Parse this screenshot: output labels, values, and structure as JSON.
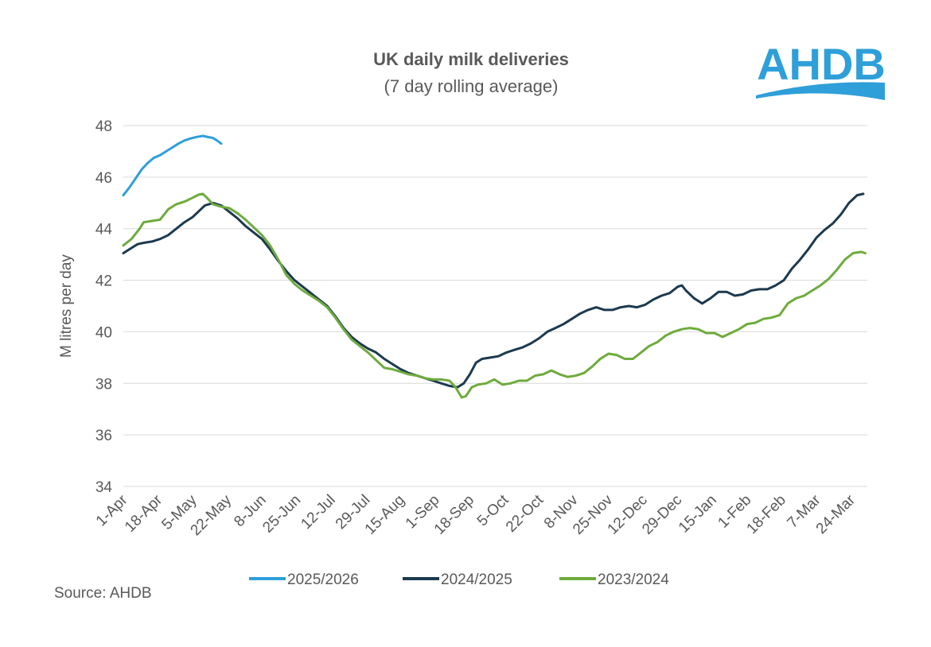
{
  "chart_data": {
    "type": "line",
    "title": "UK daily milk deliveries",
    "subtitle": "(7 day rolling average)",
    "xlabel": "",
    "ylabel": "M litres per day",
    "ylim": [
      34,
      48
    ],
    "yticks": [
      34,
      36,
      38,
      40,
      42,
      44,
      46,
      48
    ],
    "xlim_day": [
      0,
      365
    ],
    "xticks": [
      {
        "label": "1-Apr",
        "day": 0
      },
      {
        "label": "18-Apr",
        "day": 17
      },
      {
        "label": "5-May",
        "day": 34
      },
      {
        "label": "22-May",
        "day": 51
      },
      {
        "label": "8-Jun",
        "day": 68
      },
      {
        "label": "25-Jun",
        "day": 85
      },
      {
        "label": "12-Jul",
        "day": 102
      },
      {
        "label": "29-Jul",
        "day": 119
      },
      {
        "label": "15-Aug",
        "day": 136
      },
      {
        "label": "1-Sep",
        "day": 153
      },
      {
        "label": "18-Sep",
        "day": 170
      },
      {
        "label": "5-Oct",
        "day": 187
      },
      {
        "label": "22-Oct",
        "day": 204
      },
      {
        "label": "8-Nov",
        "day": 221
      },
      {
        "label": "25-Nov",
        "day": 238
      },
      {
        "label": "12-Dec",
        "day": 255
      },
      {
        "label": "29-Dec",
        "day": 272
      },
      {
        "label": "15-Jan",
        "day": 289
      },
      {
        "label": "1-Feb",
        "day": 306
      },
      {
        "label": "18-Feb",
        "day": 323
      },
      {
        "label": "7-Mar",
        "day": 340
      },
      {
        "label": "24-Mar",
        "day": 357
      }
    ],
    "grid": true,
    "legend_position": "bottom",
    "series": [
      {
        "name": "2025/2026",
        "color": "#2e9fd9",
        "points": [
          [
            0,
            45.3
          ],
          [
            3,
            45.6
          ],
          [
            6,
            45.95
          ],
          [
            9,
            46.3
          ],
          [
            12,
            46.55
          ],
          [
            15,
            46.75
          ],
          [
            18,
            46.85
          ],
          [
            21,
            47.0
          ],
          [
            24,
            47.15
          ],
          [
            27,
            47.3
          ],
          [
            30,
            47.42
          ],
          [
            33,
            47.5
          ],
          [
            36,
            47.56
          ],
          [
            39,
            47.6
          ],
          [
            42,
            47.55
          ],
          [
            44,
            47.52
          ],
          [
            46,
            47.42
          ],
          [
            48,
            47.3
          ]
        ]
      },
      {
        "name": "2024/2025",
        "color": "#1c3a4f",
        "points": [
          [
            0,
            43.05
          ],
          [
            4,
            43.25
          ],
          [
            7,
            43.4
          ],
          [
            10,
            43.45
          ],
          [
            14,
            43.5
          ],
          [
            18,
            43.6
          ],
          [
            22,
            43.75
          ],
          [
            26,
            44.0
          ],
          [
            30,
            44.25
          ],
          [
            34,
            44.45
          ],
          [
            38,
            44.75
          ],
          [
            40,
            44.9
          ],
          [
            42,
            44.95
          ],
          [
            44,
            45.0
          ],
          [
            46,
            44.95
          ],
          [
            48,
            44.9
          ],
          [
            52,
            44.65
          ],
          [
            56,
            44.4
          ],
          [
            60,
            44.1
          ],
          [
            64,
            43.85
          ],
          [
            68,
            43.6
          ],
          [
            72,
            43.2
          ],
          [
            76,
            42.75
          ],
          [
            80,
            42.35
          ],
          [
            84,
            42.0
          ],
          [
            88,
            41.75
          ],
          [
            92,
            41.5
          ],
          [
            96,
            41.25
          ],
          [
            100,
            41.0
          ],
          [
            104,
            40.6
          ],
          [
            108,
            40.15
          ],
          [
            112,
            39.8
          ],
          [
            116,
            39.55
          ],
          [
            120,
            39.35
          ],
          [
            124,
            39.2
          ],
          [
            128,
            38.95
          ],
          [
            132,
            38.75
          ],
          [
            136,
            38.55
          ],
          [
            140,
            38.4
          ],
          [
            144,
            38.3
          ],
          [
            148,
            38.2
          ],
          [
            152,
            38.1
          ],
          [
            156,
            38.0
          ],
          [
            160,
            37.9
          ],
          [
            164,
            37.85
          ],
          [
            167,
            38.0
          ],
          [
            170,
            38.35
          ],
          [
            173,
            38.8
          ],
          [
            176,
            38.95
          ],
          [
            180,
            39.0
          ],
          [
            184,
            39.05
          ],
          [
            188,
            39.2
          ],
          [
            192,
            39.3
          ],
          [
            196,
            39.4
          ],
          [
            200,
            39.55
          ],
          [
            204,
            39.75
          ],
          [
            208,
            40.0
          ],
          [
            212,
            40.15
          ],
          [
            216,
            40.3
          ],
          [
            220,
            40.5
          ],
          [
            224,
            40.7
          ],
          [
            228,
            40.85
          ],
          [
            232,
            40.95
          ],
          [
            236,
            40.85
          ],
          [
            240,
            40.85
          ],
          [
            244,
            40.95
          ],
          [
            248,
            41.0
          ],
          [
            252,
            40.95
          ],
          [
            256,
            41.05
          ],
          [
            260,
            41.25
          ],
          [
            264,
            41.4
          ],
          [
            268,
            41.5
          ],
          [
            272,
            41.75
          ],
          [
            274,
            41.8
          ],
          [
            276,
            41.6
          ],
          [
            280,
            41.3
          ],
          [
            284,
            41.1
          ],
          [
            288,
            41.3
          ],
          [
            292,
            41.55
          ],
          [
            296,
            41.55
          ],
          [
            300,
            41.4
          ],
          [
            304,
            41.45
          ],
          [
            308,
            41.6
          ],
          [
            312,
            41.65
          ],
          [
            316,
            41.65
          ],
          [
            320,
            41.8
          ],
          [
            324,
            42.0
          ],
          [
            328,
            42.45
          ],
          [
            332,
            42.8
          ],
          [
            336,
            43.2
          ],
          [
            340,
            43.65
          ],
          [
            344,
            43.95
          ],
          [
            348,
            44.2
          ],
          [
            352,
            44.55
          ],
          [
            356,
            45.0
          ],
          [
            360,
            45.3
          ],
          [
            363,
            45.35
          ]
        ]
      },
      {
        "name": "2023/2024",
        "color": "#6eab3d",
        "points": [
          [
            0,
            43.35
          ],
          [
            4,
            43.6
          ],
          [
            8,
            44.0
          ],
          [
            10,
            44.25
          ],
          [
            14,
            44.3
          ],
          [
            18,
            44.35
          ],
          [
            22,
            44.75
          ],
          [
            26,
            44.95
          ],
          [
            30,
            45.05
          ],
          [
            34,
            45.2
          ],
          [
            37,
            45.32
          ],
          [
            39,
            45.35
          ],
          [
            41,
            45.2
          ],
          [
            44,
            44.95
          ],
          [
            48,
            44.85
          ],
          [
            52,
            44.8
          ],
          [
            56,
            44.6
          ],
          [
            60,
            44.35
          ],
          [
            64,
            44.05
          ],
          [
            68,
            43.75
          ],
          [
            72,
            43.35
          ],
          [
            76,
            42.8
          ],
          [
            80,
            42.2
          ],
          [
            84,
            41.85
          ],
          [
            88,
            41.6
          ],
          [
            92,
            41.4
          ],
          [
            96,
            41.2
          ],
          [
            100,
            40.95
          ],
          [
            104,
            40.55
          ],
          [
            108,
            40.1
          ],
          [
            112,
            39.7
          ],
          [
            116,
            39.45
          ],
          [
            120,
            39.2
          ],
          [
            124,
            38.9
          ],
          [
            128,
            38.6
          ],
          [
            132,
            38.55
          ],
          [
            136,
            38.45
          ],
          [
            140,
            38.35
          ],
          [
            144,
            38.3
          ],
          [
            148,
            38.2
          ],
          [
            152,
            38.15
          ],
          [
            156,
            38.15
          ],
          [
            160,
            38.1
          ],
          [
            163,
            37.85
          ],
          [
            166,
            37.45
          ],
          [
            168,
            37.5
          ],
          [
            171,
            37.85
          ],
          [
            174,
            37.95
          ],
          [
            178,
            38.0
          ],
          [
            182,
            38.15
          ],
          [
            186,
            37.95
          ],
          [
            190,
            38.0
          ],
          [
            194,
            38.1
          ],
          [
            198,
            38.1
          ],
          [
            202,
            38.3
          ],
          [
            206,
            38.35
          ],
          [
            210,
            38.5
          ],
          [
            214,
            38.35
          ],
          [
            218,
            38.25
          ],
          [
            222,
            38.3
          ],
          [
            226,
            38.4
          ],
          [
            230,
            38.65
          ],
          [
            234,
            38.95
          ],
          [
            238,
            39.15
          ],
          [
            242,
            39.1
          ],
          [
            246,
            38.95
          ],
          [
            250,
            38.95
          ],
          [
            254,
            39.2
          ],
          [
            258,
            39.45
          ],
          [
            262,
            39.6
          ],
          [
            266,
            39.85
          ],
          [
            270,
            40.0
          ],
          [
            274,
            40.1
          ],
          [
            278,
            40.15
          ],
          [
            282,
            40.1
          ],
          [
            286,
            39.95
          ],
          [
            290,
            39.95
          ],
          [
            294,
            39.8
          ],
          [
            298,
            39.95
          ],
          [
            302,
            40.1
          ],
          [
            306,
            40.3
          ],
          [
            310,
            40.35
          ],
          [
            314,
            40.5
          ],
          [
            318,
            40.55
          ],
          [
            322,
            40.65
          ],
          [
            326,
            41.1
          ],
          [
            330,
            41.3
          ],
          [
            334,
            41.4
          ],
          [
            338,
            41.6
          ],
          [
            342,
            41.8
          ],
          [
            346,
            42.05
          ],
          [
            350,
            42.4
          ],
          [
            354,
            42.8
          ],
          [
            358,
            43.05
          ],
          [
            362,
            43.1
          ],
          [
            364,
            43.05
          ]
        ]
      }
    ]
  },
  "source_label": "Source: AHDB",
  "logo_text": "AHDB",
  "colors": {
    "grid": "#d9d9d9",
    "text": "#595959",
    "logo": "#2e9fd9"
  }
}
